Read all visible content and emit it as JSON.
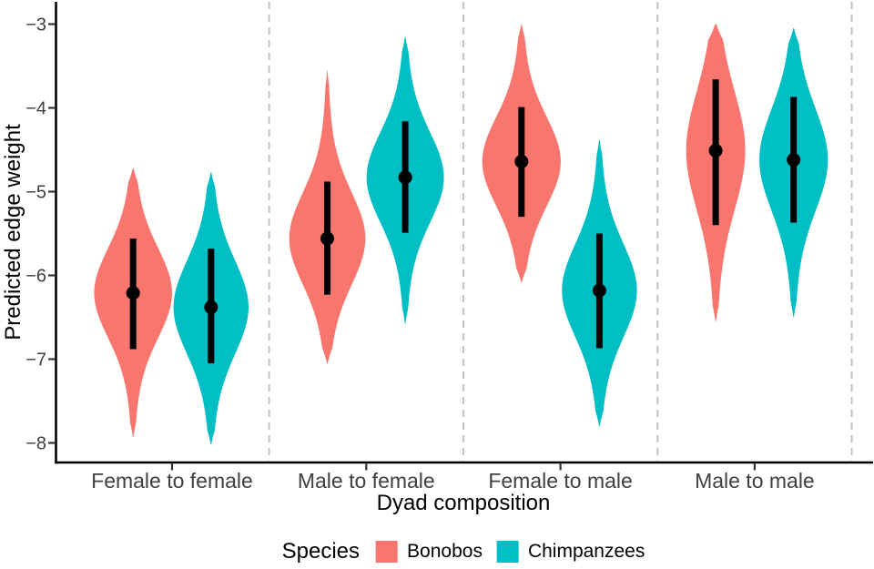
{
  "chart_data": {
    "type": "violin",
    "title": "",
    "xlabel": "Dyad composition",
    "ylabel": "Predicted edge weight",
    "ylim": [
      -8.26,
      -2.72
    ],
    "yticks": [
      -3,
      -4,
      -5,
      -6,
      -7,
      -8
    ],
    "categories": [
      "Female to female",
      "Male to female",
      "Female to male",
      "Male to male"
    ],
    "grid": false,
    "facet_separators": "dashed-vertical",
    "legend": {
      "title": "Species",
      "position": "bottom",
      "entries": [
        {
          "label": "Bonobos",
          "color": "#F8766D"
        },
        {
          "label": "Chimpanzees",
          "color": "#00BFC4"
        }
      ]
    },
    "point_marker": "filled-circle",
    "interval_type": "credible-interval",
    "series": [
      {
        "name": "Bonobos",
        "color": "#F8766D",
        "stats": [
          {
            "category": "Female to female",
            "point": -6.21,
            "ci": [
              -6.88,
              -5.56
            ],
            "density_range": [
              -7.93,
              -4.72
            ]
          },
          {
            "category": "Male to female",
            "point": -5.56,
            "ci": [
              -6.23,
              -4.88
            ],
            "density_range": [
              -7.05,
              -3.55
            ]
          },
          {
            "category": "Female to male",
            "point": -4.64,
            "ci": [
              -5.3,
              -3.99
            ],
            "density_range": [
              -6.08,
              -3.0
            ]
          },
          {
            "category": "Male to male",
            "point": -4.51,
            "ci": [
              -5.4,
              -3.66
            ],
            "density_range": [
              -6.55,
              -3.0
            ]
          }
        ]
      },
      {
        "name": "Chimpanzees",
        "color": "#00BFC4",
        "stats": [
          {
            "category": "Female to female",
            "point": -6.38,
            "ci": [
              -7.05,
              -5.68
            ],
            "density_range": [
              -8.02,
              -4.77
            ]
          },
          {
            "category": "Male to female",
            "point": -4.83,
            "ci": [
              -5.49,
              -4.16
            ],
            "density_range": [
              -6.58,
              -3.15
            ]
          },
          {
            "category": "Female to male",
            "point": -6.18,
            "ci": [
              -6.87,
              -5.5
            ],
            "density_range": [
              -7.8,
              -4.38
            ]
          },
          {
            "category": "Male to male",
            "point": -4.62,
            "ci": [
              -5.37,
              -3.87
            ],
            "density_range": [
              -6.5,
              -3.05
            ]
          }
        ]
      }
    ],
    "style": {
      "axis_color": "#000000",
      "tick_label_color": "#404040",
      "separator_color": "#C3C3C3",
      "interval_color": "#000000"
    }
  }
}
